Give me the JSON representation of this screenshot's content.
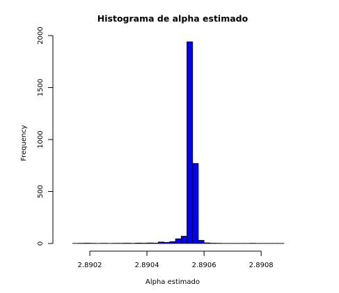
{
  "chart_data": {
    "type": "bar",
    "title": "Histograma de alpha estimado",
    "xlabel": "Alpha estimado",
    "ylabel": "Frequency",
    "bar_color": "#0000ff",
    "xlim": [
      2.8901,
      2.89088
    ],
    "ylim": [
      0,
      2000
    ],
    "bin_width": 2e-05,
    "x_ticks": [
      2.8902,
      2.8904,
      2.8906,
      2.8908
    ],
    "x_tick_labels": [
      "2.8902",
      "2.8904",
      "2.8906",
      "2.8908"
    ],
    "y_ticks": [
      0,
      500,
      1000,
      1500,
      2000
    ],
    "y_tick_labels": [
      "0",
      "500",
      "1000",
      "1500",
      "2000"
    ],
    "bins": [
      {
        "x0": 2.89012,
        "x1": 2.89014,
        "count": 0
      },
      {
        "x0": 2.89014,
        "x1": 2.89016,
        "count": 1
      },
      {
        "x0": 2.89016,
        "x1": 2.89018,
        "count": 2
      },
      {
        "x0": 2.89018,
        "x1": 2.8902,
        "count": 3
      },
      {
        "x0": 2.8902,
        "x1": 2.89022,
        "count": 2
      },
      {
        "x0": 2.89022,
        "x1": 2.89024,
        "count": 1
      },
      {
        "x0": 2.89024,
        "x1": 2.89026,
        "count": 2
      },
      {
        "x0": 2.89026,
        "x1": 2.89028,
        "count": 1
      },
      {
        "x0": 2.89028,
        "x1": 2.8903,
        "count": 2
      },
      {
        "x0": 2.8903,
        "x1": 2.89032,
        "count": 2
      },
      {
        "x0": 2.89032,
        "x1": 2.89034,
        "count": 3
      },
      {
        "x0": 2.89034,
        "x1": 2.89036,
        "count": 2
      },
      {
        "x0": 2.89036,
        "x1": 2.89038,
        "count": 4
      },
      {
        "x0": 2.89038,
        "x1": 2.8904,
        "count": 3
      },
      {
        "x0": 2.8904,
        "x1": 2.89042,
        "count": 5
      },
      {
        "x0": 2.89042,
        "x1": 2.89044,
        "count": 4
      },
      {
        "x0": 2.89044,
        "x1": 2.89046,
        "count": 14
      },
      {
        "x0": 2.89046,
        "x1": 2.89048,
        "count": 10
      },
      {
        "x0": 2.89048,
        "x1": 2.8905,
        "count": 18
      },
      {
        "x0": 2.8905,
        "x1": 2.89052,
        "count": 45
      },
      {
        "x0": 2.89052,
        "x1": 2.89054,
        "count": 70
      },
      {
        "x0": 2.89054,
        "x1": 2.89056,
        "count": 1940
      },
      {
        "x0": 2.89056,
        "x1": 2.89058,
        "count": 770
      },
      {
        "x0": 2.89058,
        "x1": 2.8906,
        "count": 30
      },
      {
        "x0": 2.8906,
        "x1": 2.89062,
        "count": 6
      },
      {
        "x0": 2.89062,
        "x1": 2.89064,
        "count": 3
      },
      {
        "x0": 2.89064,
        "x1": 2.89066,
        "count": 2
      },
      {
        "x0": 2.89066,
        "x1": 2.89068,
        "count": 1
      },
      {
        "x0": 2.89068,
        "x1": 2.8907,
        "count": 1
      },
      {
        "x0": 2.8907,
        "x1": 2.89072,
        "count": 1
      },
      {
        "x0": 2.89072,
        "x1": 2.89074,
        "count": 1
      },
      {
        "x0": 2.89074,
        "x1": 2.89076,
        "count": 1
      },
      {
        "x0": 2.89076,
        "x1": 2.89078,
        "count": 2
      },
      {
        "x0": 2.89078,
        "x1": 2.8908,
        "count": 1
      },
      {
        "x0": 2.8908,
        "x1": 2.89082,
        "count": 1
      },
      {
        "x0": 2.89082,
        "x1": 2.89084,
        "count": 1
      },
      {
        "x0": 2.89084,
        "x1": 2.89086,
        "count": 1
      },
      {
        "x0": 2.89086,
        "x1": 2.89088,
        "count": 1
      }
    ]
  }
}
